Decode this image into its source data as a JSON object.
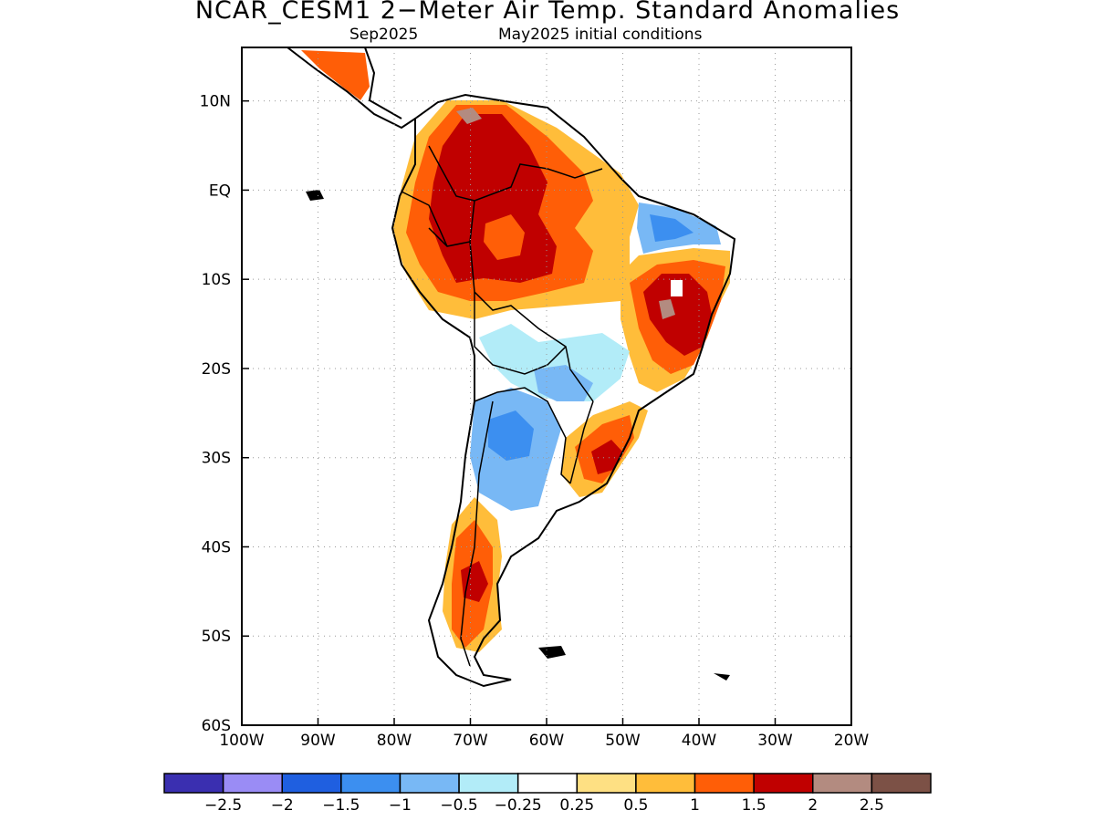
{
  "title": "NCAR_CESM1 2−Meter Air Temp. Standard Anomalies",
  "subtitle_left": "Sep2025",
  "subtitle_right": "May2025 initial conditions",
  "map": {
    "lon_range": [
      -100,
      -20
    ],
    "lat_range": [
      -60,
      16
    ],
    "lon_ticks": [
      "100W",
      "90W",
      "80W",
      "70W",
      "60W",
      "50W",
      "40W",
      "30W",
      "20W"
    ],
    "lat_ticks": [
      "10N",
      "EQ",
      "10S",
      "20S",
      "30S",
      "40S",
      "50S",
      "60S"
    ],
    "grid": "dotted"
  },
  "colorbar": {
    "colors": [
      "#3a2fb0",
      "#9a8cf5",
      "#1f5fe0",
      "#3c8ff0",
      "#78b8f5",
      "#b2ecf8",
      "#ffffff",
      "#fee083",
      "#ffbd3a",
      "#ff5e07",
      "#c00000",
      "#b38b80",
      "#7c5146"
    ],
    "labels": [
      "−2.5",
      "−2",
      "−1.5",
      "−1",
      "−0.5",
      "−0.25",
      "0.25",
      "0.5",
      "1",
      "1.5",
      "2",
      "2.5"
    ]
  },
  "anomaly_regions": [
    {
      "name": "northern-south-america-warm",
      "level": "1.5"
    },
    {
      "name": "amazon-core-warm",
      "level": "2"
    },
    {
      "name": "northeast-brazil-warm",
      "level": "2"
    },
    {
      "name": "northeast-coast-cool",
      "level": "-1"
    },
    {
      "name": "central-south-america-cool",
      "level": "-0.5"
    },
    {
      "name": "gran-chaco-cool",
      "level": "-1"
    },
    {
      "name": "southern-brazil-warm",
      "level": "2"
    },
    {
      "name": "patagonia-warm",
      "level": "1.5"
    }
  ]
}
